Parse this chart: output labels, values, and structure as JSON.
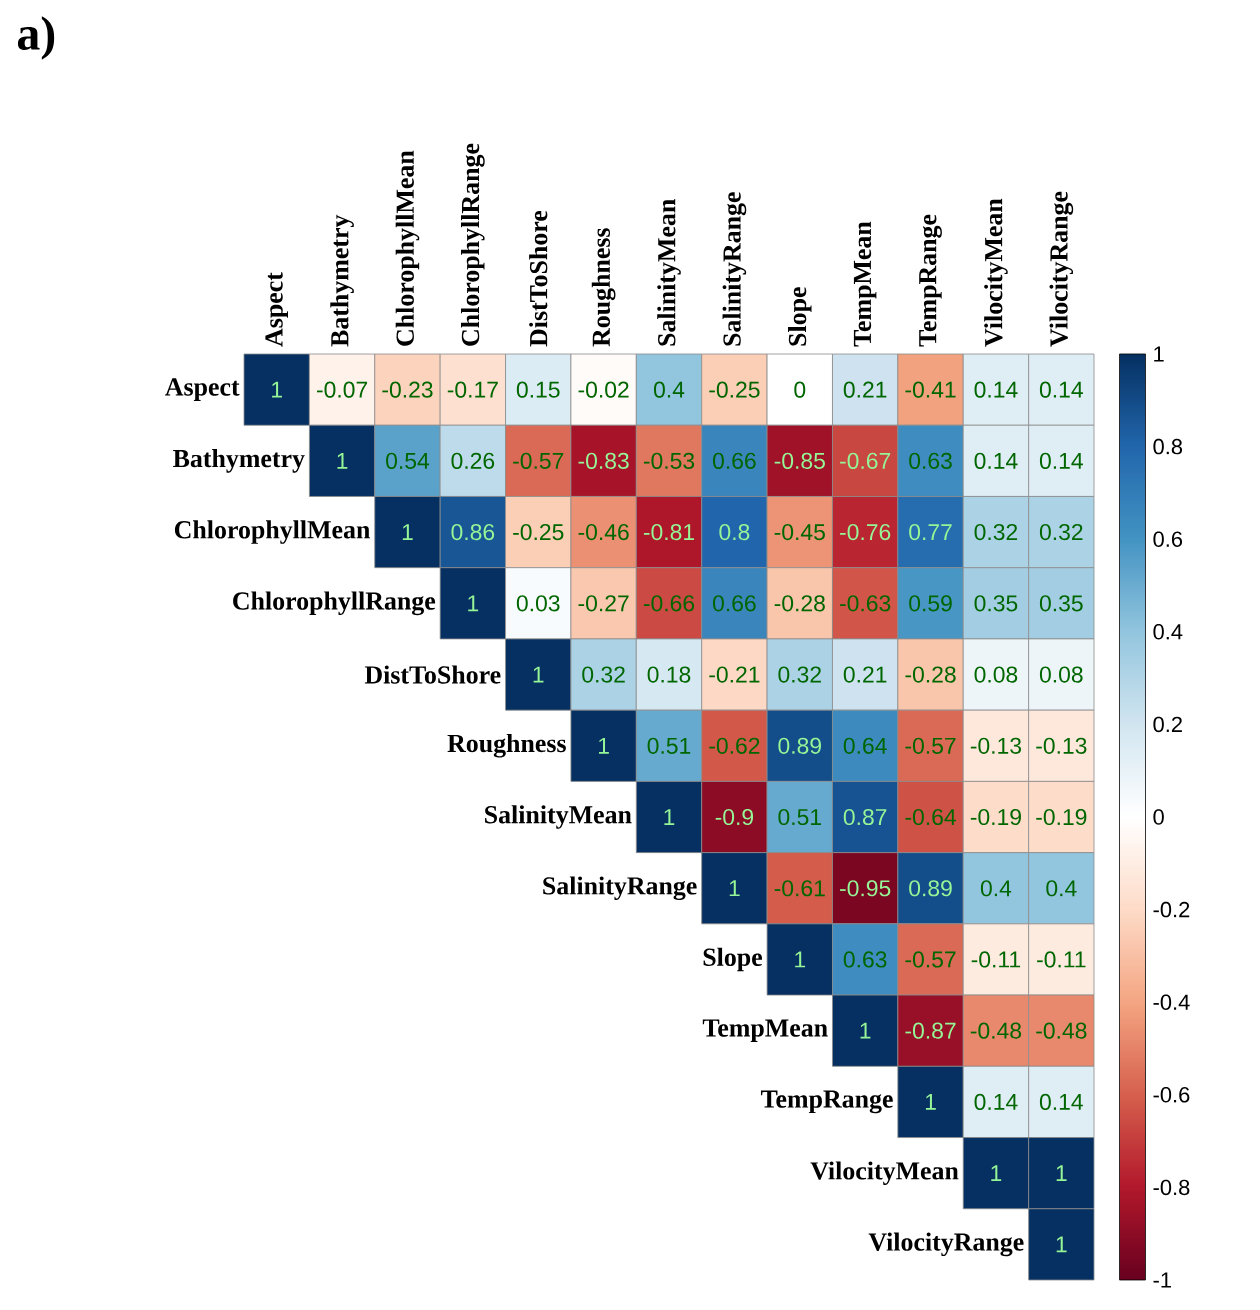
{
  "chart_data": {
    "type": "heatmap",
    "title": "a)",
    "categories": [
      "Aspect",
      "Bathymetry",
      "ChlorophyllMean",
      "ChlorophyllRange",
      "DistToShore",
      "Roughness",
      "SalinityMean",
      "SalinityRange",
      "Slope",
      "TempMean",
      "TempRange",
      "VilocityMean",
      "VilocityRange"
    ],
    "y_categories": [
      "Aspect",
      "Bathymetry",
      "ChlorophyllMean",
      "ChlorophyllRange",
      "DistToShore",
      "Roughness",
      "SalinityMean",
      "SalinityRange",
      "Slope",
      "TempMean",
      "TempRange",
      "VilocityMean",
      "VilocityRange"
    ],
    "cells": [
      [
        1,
        -0.07,
        -0.23,
        -0.17,
        0.15,
        -0.02,
        0.4,
        -0.25,
        0,
        0.21,
        -0.41,
        0.14,
        0.14
      ],
      [
        null,
        1,
        0.54,
        0.26,
        -0.57,
        -0.83,
        -0.53,
        0.66,
        -0.85,
        -0.67,
        0.63,
        0.14,
        0.14
      ],
      [
        null,
        null,
        1,
        0.86,
        -0.25,
        -0.46,
        -0.81,
        0.8,
        -0.45,
        -0.76,
        0.77,
        0.32,
        0.32
      ],
      [
        null,
        null,
        null,
        1,
        0.03,
        -0.27,
        -0.66,
        0.66,
        -0.28,
        -0.63,
        0.59,
        0.35,
        0.35
      ],
      [
        null,
        null,
        null,
        null,
        1,
        0.32,
        0.18,
        -0.21,
        0.32,
        0.21,
        -0.28,
        0.08,
        0.08
      ],
      [
        null,
        null,
        null,
        null,
        null,
        1,
        0.51,
        -0.62,
        0.89,
        0.64,
        -0.57,
        -0.13,
        -0.13
      ],
      [
        null,
        null,
        null,
        null,
        null,
        null,
        1,
        -0.9,
        0.51,
        0.87,
        -0.64,
        -0.19,
        -0.19
      ],
      [
        null,
        null,
        null,
        null,
        null,
        null,
        null,
        1,
        -0.61,
        -0.95,
        0.89,
        0.4,
        0.4
      ],
      [
        null,
        null,
        null,
        null,
        null,
        null,
        null,
        null,
        1,
        0.63,
        -0.57,
        -0.11,
        -0.11
      ],
      [
        null,
        null,
        null,
        null,
        null,
        null,
        null,
        null,
        null,
        1,
        -0.87,
        -0.48,
        -0.48
      ],
      [
        null,
        null,
        null,
        null,
        null,
        null,
        null,
        null,
        null,
        null,
        1,
        0.14,
        0.14
      ],
      [
        null,
        null,
        null,
        null,
        null,
        null,
        null,
        null,
        null,
        null,
        null,
        1,
        1
      ],
      [
        null,
        null,
        null,
        null,
        null,
        null,
        null,
        null,
        null,
        null,
        null,
        null,
        1
      ]
    ],
    "clim": [
      -1,
      1
    ],
    "cticks": [
      -1,
      -0.8,
      -0.6,
      -0.4,
      -0.2,
      0,
      0.2,
      0.4,
      0.6,
      0.8,
      1
    ],
    "data_labels": true
  }
}
